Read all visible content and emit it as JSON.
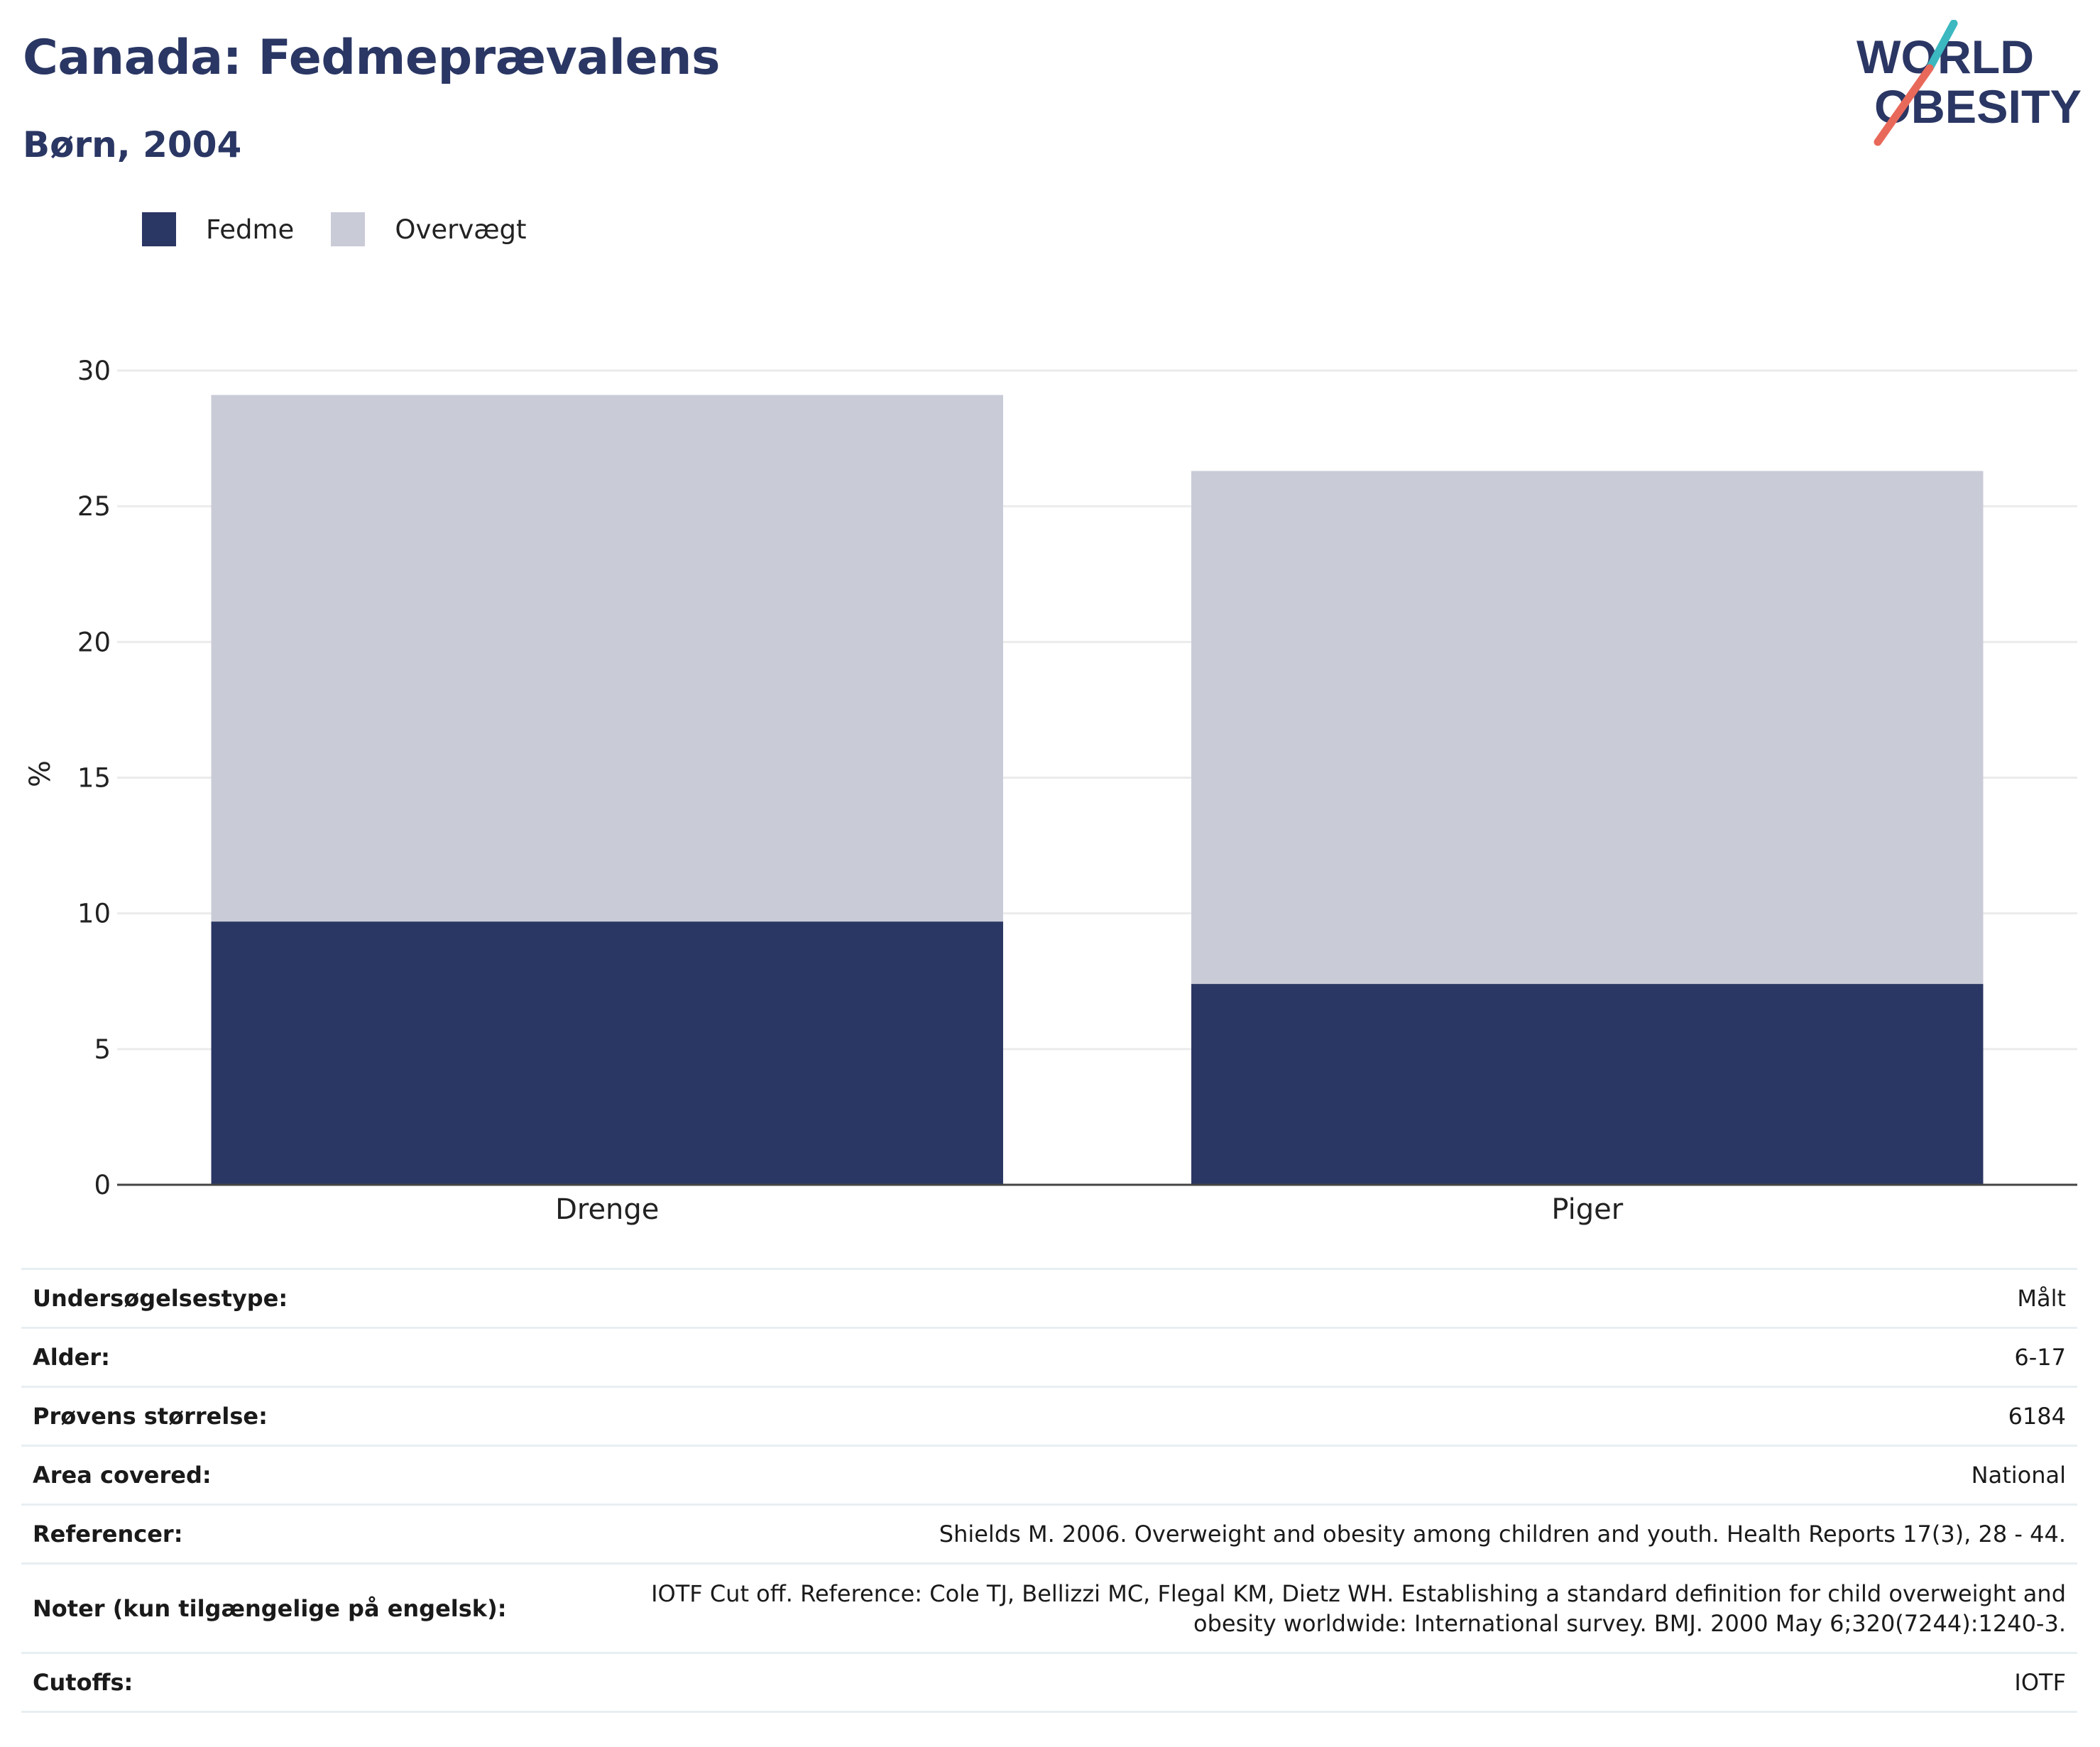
{
  "title": "Canada: Fedmeprævalens",
  "subtitle": "Børn, 2004",
  "logo": {
    "line1": "WORLD",
    "line2": "OBESITY",
    "colors": {
      "text": "#2a3663",
      "slash_top": "#3bb8c0",
      "slash_bottom": "#e8695a"
    }
  },
  "legend": [
    {
      "label": "Fedme",
      "color": "#2a3663"
    },
    {
      "label": "Overvægt",
      "color": "#c9cbd7"
    }
  ],
  "chart_data": {
    "type": "bar",
    "stacked": true,
    "categories": [
      "Drenge",
      "Piger"
    ],
    "series": [
      {
        "name": "Fedme",
        "color": "#2a3663",
        "values": [
          9.7,
          7.4
        ]
      },
      {
        "name": "Overvægt",
        "color": "#c9cbd7",
        "values": [
          19.4,
          18.9
        ]
      }
    ],
    "ylabel": "%",
    "ylim": [
      0,
      30
    ],
    "yticks": [
      0,
      5,
      10,
      15,
      20,
      25,
      30
    ],
    "grid": true,
    "legend_position": "top-left"
  },
  "details": [
    {
      "label": "Undersøgelsestype:",
      "value": "Målt"
    },
    {
      "label": "Alder:",
      "value": "6-17"
    },
    {
      "label": "Prøvens størrelse:",
      "value": "6184"
    },
    {
      "label": "Area covered:",
      "value": "National"
    },
    {
      "label": "Referencer:",
      "value": "Shields M. 2006. Overweight and obesity among children and youth. Health Reports 17(3), 28 - 44."
    },
    {
      "label": "Noter (kun tilgængelige på engelsk):",
      "value": "IOTF Cut off. Reference: Cole TJ, Bellizzi MC, Flegal KM, Dietz WH. Establishing a standard definition for child overweight and obesity worldwide: International survey. BMJ. 2000 May 6;320(7244):1240-3."
    },
    {
      "label": "Cutoffs:",
      "value": "IOTF"
    }
  ]
}
